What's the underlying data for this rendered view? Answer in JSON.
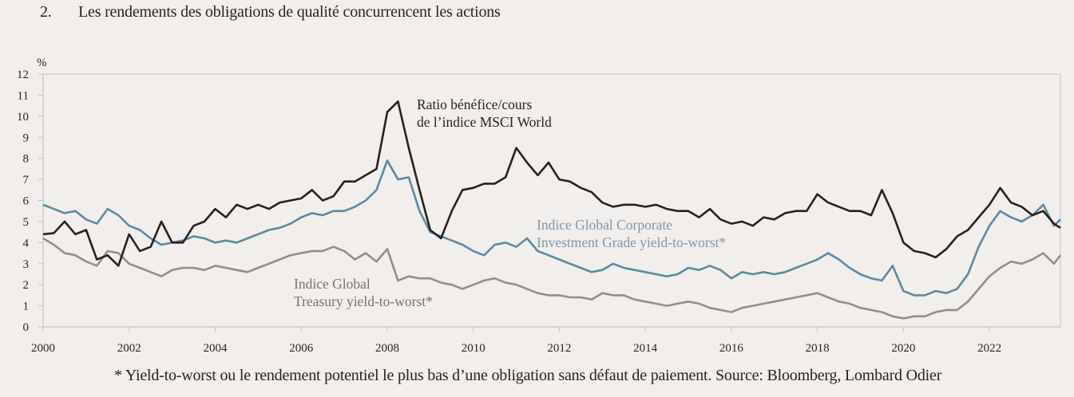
{
  "header": {
    "number": "2.",
    "title": "Les rendements des obligations de qualité concurrencent les actions"
  },
  "footnote": "* Yield-to-worst ou le rendement potentiel le plus bas d’une obligation sans défaut de paiement. Source: Bloomberg, Lombard Odier",
  "chart_data": {
    "type": "line",
    "title": "Les rendements des obligations de qualité concurrencent les actions",
    "ylabel": "%",
    "xlabel": "",
    "xlim": [
      2000,
      2023.65
    ],
    "ylim": [
      0,
      12
    ],
    "yticks": [
      0,
      1,
      2,
      3,
      4,
      5,
      6,
      7,
      8,
      9,
      10,
      11,
      12
    ],
    "xticks": [
      2000,
      2002,
      2004,
      2006,
      2008,
      2010,
      2012,
      2014,
      2016,
      2018,
      2020,
      2022
    ],
    "grid": false,
    "colors": {
      "msci": "#2b1f1e",
      "corporate": "#5b8aa3",
      "treasury": "#9a8b83"
    },
    "x": [
      2000.0,
      2000.25,
      2000.5,
      2000.75,
      2001.0,
      2001.25,
      2001.5,
      2001.75,
      2002.0,
      2002.25,
      2002.5,
      2002.75,
      2003.0,
      2003.25,
      2003.5,
      2003.75,
      2004.0,
      2004.25,
      2004.5,
      2004.75,
      2005.0,
      2005.25,
      2005.5,
      2005.75,
      2006.0,
      2006.25,
      2006.5,
      2006.75,
      2007.0,
      2007.25,
      2007.5,
      2007.75,
      2008.0,
      2008.25,
      2008.5,
      2008.75,
      2009.0,
      2009.25,
      2009.5,
      2009.75,
      2010.0,
      2010.25,
      2010.5,
      2010.75,
      2011.0,
      2011.25,
      2011.5,
      2011.75,
      2012.0,
      2012.25,
      2012.5,
      2012.75,
      2013.0,
      2013.25,
      2013.5,
      2013.75,
      2014.0,
      2014.25,
      2014.5,
      2014.75,
      2015.0,
      2015.25,
      2015.5,
      2015.75,
      2016.0,
      2016.25,
      2016.5,
      2016.75,
      2017.0,
      2017.25,
      2017.5,
      2017.75,
      2018.0,
      2018.25,
      2018.5,
      2018.75,
      2019.0,
      2019.25,
      2019.5,
      2019.75,
      2020.0,
      2020.25,
      2020.5,
      2020.75,
      2021.0,
      2021.25,
      2021.5,
      2021.75,
      2022.0,
      2022.25,
      2022.5,
      2022.75,
      2023.0,
      2023.25,
      2023.5,
      2023.65
    ],
    "series": [
      {
        "name": "Ratio bénéfice/cours de l’indice MSCI World",
        "key": "msci",
        "values": [
          4.4,
          4.45,
          5.0,
          4.4,
          4.6,
          3.2,
          3.4,
          2.9,
          4.4,
          3.6,
          3.8,
          5.0,
          4.0,
          4.0,
          4.8,
          5.0,
          5.6,
          5.2,
          5.8,
          5.6,
          5.8,
          5.6,
          5.9,
          6.0,
          6.1,
          6.5,
          6.0,
          6.2,
          6.9,
          6.9,
          7.2,
          7.5,
          10.2,
          10.7,
          8.5,
          6.5,
          4.6,
          4.2,
          5.5,
          6.5,
          6.6,
          6.8,
          6.8,
          7.1,
          8.5,
          7.8,
          7.2,
          7.8,
          7.0,
          6.9,
          6.6,
          6.4,
          5.9,
          5.7,
          5.8,
          5.8,
          5.7,
          5.8,
          5.6,
          5.5,
          5.5,
          5.2,
          5.6,
          5.1,
          4.9,
          5.0,
          4.8,
          5.2,
          5.1,
          5.4,
          5.5,
          5.5,
          6.3,
          5.9,
          5.7,
          5.5,
          5.5,
          5.3,
          6.5,
          5.4,
          4.0,
          3.6,
          3.5,
          3.3,
          3.7,
          4.3,
          4.6,
          5.2,
          5.8,
          6.6,
          5.9,
          5.7,
          5.3,
          5.5,
          4.9,
          4.7
        ]
      },
      {
        "name": "Indice Global Corporate Investment Grade yield-to-worst*",
        "key": "corporate",
        "values": [
          5.8,
          5.6,
          5.4,
          5.5,
          5.1,
          4.9,
          5.6,
          5.3,
          4.8,
          4.6,
          4.2,
          3.9,
          4.0,
          4.1,
          4.3,
          4.2,
          4.0,
          4.1,
          4.0,
          4.2,
          4.4,
          4.6,
          4.7,
          4.9,
          5.2,
          5.4,
          5.3,
          5.5,
          5.5,
          5.7,
          6.0,
          6.5,
          7.9,
          7.0,
          7.1,
          5.5,
          4.5,
          4.3,
          4.1,
          3.9,
          3.6,
          3.4,
          3.9,
          4.0,
          3.8,
          4.2,
          3.6,
          3.4,
          3.2,
          3.0,
          2.8,
          2.6,
          2.7,
          3.0,
          2.8,
          2.7,
          2.6,
          2.5,
          2.4,
          2.5,
          2.8,
          2.7,
          2.9,
          2.7,
          2.3,
          2.6,
          2.5,
          2.6,
          2.5,
          2.6,
          2.8,
          3.0,
          3.2,
          3.5,
          3.2,
          2.8,
          2.5,
          2.3,
          2.2,
          2.9,
          1.7,
          1.5,
          1.5,
          1.7,
          1.6,
          1.8,
          2.5,
          3.8,
          4.8,
          5.5,
          5.2,
          5.0,
          5.3,
          5.8,
          4.8,
          5.1
        ]
      },
      {
        "name": "Indice Global Treasury yield-to-worst*",
        "key": "treasury",
        "values": [
          4.2,
          3.9,
          3.5,
          3.4,
          3.1,
          2.9,
          3.6,
          3.5,
          3.0,
          2.8,
          2.6,
          2.4,
          2.7,
          2.8,
          2.8,
          2.7,
          2.9,
          2.8,
          2.7,
          2.6,
          2.8,
          3.0,
          3.2,
          3.4,
          3.5,
          3.6,
          3.6,
          3.8,
          3.6,
          3.2,
          3.5,
          3.1,
          3.7,
          2.2,
          2.4,
          2.3,
          2.3,
          2.1,
          2.0,
          1.8,
          2.0,
          2.2,
          2.3,
          2.1,
          2.0,
          1.8,
          1.6,
          1.5,
          1.5,
          1.4,
          1.4,
          1.3,
          1.6,
          1.5,
          1.5,
          1.3,
          1.2,
          1.1,
          1.0,
          1.1,
          1.2,
          1.1,
          0.9,
          0.8,
          0.7,
          0.9,
          1.0,
          1.1,
          1.2,
          1.3,
          1.4,
          1.5,
          1.6,
          1.4,
          1.2,
          1.1,
          0.9,
          0.8,
          0.7,
          0.5,
          0.4,
          0.5,
          0.5,
          0.7,
          0.8,
          0.8,
          1.2,
          1.8,
          2.4,
          2.8,
          3.1,
          3.0,
          3.2,
          3.5,
          3.0,
          3.4
        ]
      }
    ],
    "annotations": [
      {
        "key": "msci",
        "lines": [
          "Ratio bénéfice/cours",
          "de l’indice MSCI World"
        ]
      },
      {
        "key": "corporate",
        "lines": [
          "Indice Global Corporate",
          "Investment Grade yield-to-worst*"
        ]
      },
      {
        "key": "treasury",
        "lines": [
          "Indice Global",
          "Treasury yield-to-worst*"
        ]
      }
    ]
  }
}
